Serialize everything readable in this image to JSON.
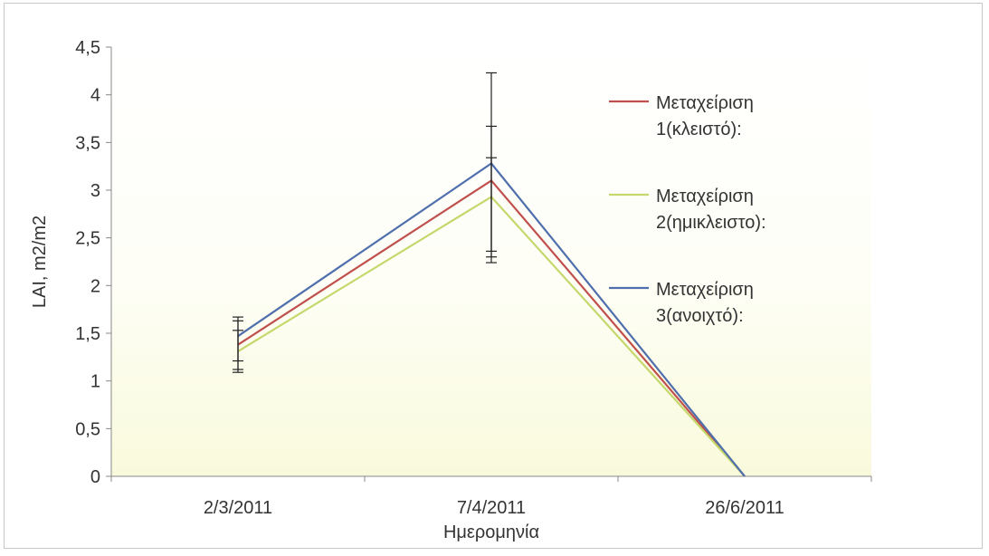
{
  "chart_data": {
    "type": "line",
    "title": "",
    "xlabel": "Ημερομηνία",
    "ylabel": "LAI, m2/m2",
    "categories": [
      "2/3/2011",
      "7/4/2011",
      "26/6/2011"
    ],
    "ylim": [
      0,
      4.5
    ],
    "yticks": [
      "0",
      "0,5",
      "1",
      "1,5",
      "2",
      "2,5",
      "3",
      "3,5",
      "4",
      "4,5"
    ],
    "grid": false,
    "legend_position": "right",
    "series": [
      {
        "name_line1": "Μεταχείριση",
        "name_line2": "1(κλειστό):",
        "color": "#c0504d",
        "values": [
          1.38,
          3.1,
          0
        ],
        "error_low": [
          1.12,
          2.24,
          null
        ],
        "error_high": [
          1.63,
          3.67,
          null
        ]
      },
      {
        "name_line1": "Μεταχείριση",
        "name_line2": "2(ημικλειστο):",
        "color": "#c4d86c",
        "values": [
          1.31,
          2.93,
          0
        ],
        "error_low": [
          1.09,
          2.36,
          null
        ],
        "error_high": [
          1.53,
          3.34,
          null
        ]
      },
      {
        "name_line1": "Μεταχείριση",
        "name_line2": "3(ανοιχτό):",
        "color": "#4f6fad",
        "values": [
          1.47,
          3.28,
          0
        ],
        "error_low": [
          1.21,
          2.3,
          null
        ],
        "error_high": [
          1.67,
          4.23,
          null
        ]
      }
    ]
  }
}
